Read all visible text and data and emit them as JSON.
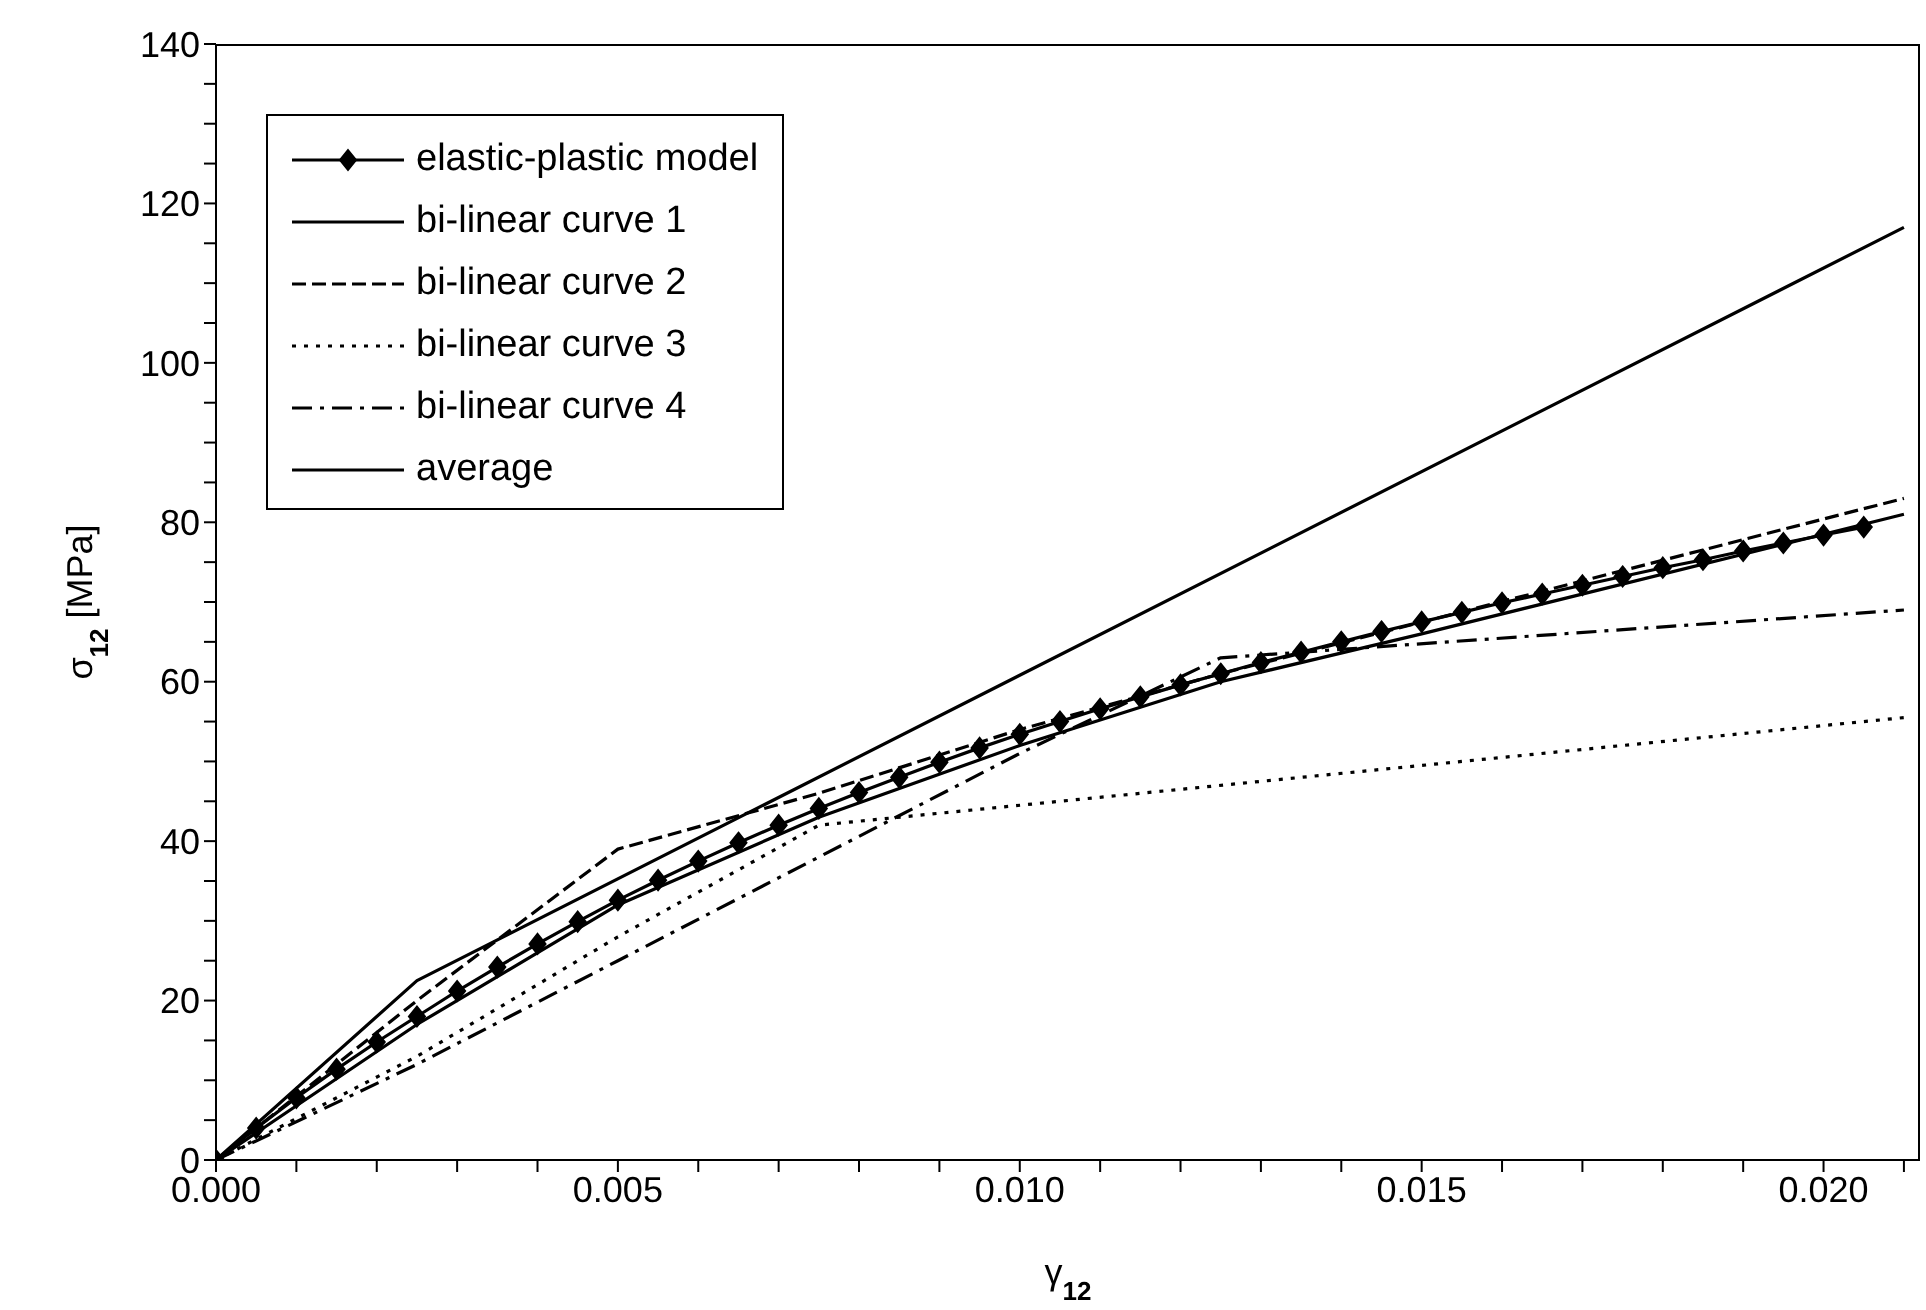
{
  "chart_data": {
    "type": "line",
    "xlabel": "γ$_{12}$",
    "ylabel": "σ$_{12}$ [MPa]",
    "xlim": [
      0,
      0.0212
    ],
    "xticks": [
      {
        "value": 0,
        "label": "0.000"
      },
      {
        "value": 0.001,
        "label": null
      },
      {
        "value": 0.002,
        "label": null
      },
      {
        "value": 0.003,
        "label": null
      },
      {
        "value": 0.004,
        "label": null
      },
      {
        "value": 0.005,
        "label": "0.005"
      },
      {
        "value": 0.006,
        "label": null
      },
      {
        "value": 0.007,
        "label": null
      },
      {
        "value": 0.008,
        "label": null
      },
      {
        "value": 0.009,
        "label": null
      },
      {
        "value": 0.01,
        "label": "0.010"
      },
      {
        "value": 0.011,
        "label": null
      },
      {
        "value": 0.012,
        "label": null
      },
      {
        "value": 0.013,
        "label": null
      },
      {
        "value": 0.014,
        "label": null
      },
      {
        "value": 0.015,
        "label": "0.015"
      },
      {
        "value": 0.016,
        "label": null
      },
      {
        "value": 0.017,
        "label": null
      },
      {
        "value": 0.018,
        "label": null
      },
      {
        "value": 0.019,
        "label": null
      },
      {
        "value": 0.02,
        "label": "0.020"
      },
      {
        "value": 0.021,
        "label": null
      }
    ],
    "ylim": [
      0,
      140
    ],
    "yticks": [
      0,
      {
        "value": 5,
        "label": null
      },
      {
        "value": 10,
        "label": null
      },
      {
        "value": 15,
        "label": null
      },
      20,
      {
        "value": 25,
        "label": null
      },
      {
        "value": 30,
        "label": null
      },
      {
        "value": 35,
        "label": null
      },
      40,
      {
        "value": 45,
        "label": null
      },
      {
        "value": 50,
        "label": null
      },
      {
        "value": 55,
        "label": null
      },
      60,
      {
        "value": 65,
        "label": null
      },
      {
        "value": 70,
        "label": null
      },
      {
        "value": 75,
        "label": null
      },
      80,
      {
        "value": 85,
        "label": null
      },
      {
        "value": 90,
        "label": null
      },
      {
        "value": 95,
        "label": null
      },
      100,
      {
        "value": 105,
        "label": null
      },
      {
        "value": 110,
        "label": null
      },
      {
        "value": 115,
        "label": null
      },
      120,
      {
        "value": 125,
        "label": null
      },
      {
        "value": 130,
        "label": null
      },
      {
        "value": 135,
        "label": null
      },
      140
    ],
    "grid": false,
    "legend": "top left",
    "series": [
      {
        "name": "elastic-plastic model",
        "color": "#000000",
        "marker": "diamond",
        "line_style": "solid",
        "x": [
          0,
          0.0005,
          0.001,
          0.0015,
          0.002,
          0.0025,
          0.003,
          0.0035,
          0.004,
          0.0045,
          0.005,
          0.0055,
          0.006,
          0.0065,
          0.007,
          0.0075,
          0.008,
          0.0085,
          0.009,
          0.0095,
          0.01,
          0.0105,
          0.011,
          0.0115,
          0.012,
          0.0125,
          0.013,
          0.0135,
          0.014,
          0.0145,
          0.015,
          0.0155,
          0.016,
          0.0165,
          0.017,
          0.0175,
          0.018,
          0.0185,
          0.019,
          0.0195,
          0.02,
          0.0205
        ],
        "values": [
          0,
          4,
          7.8,
          11.4,
          14.8,
          18,
          21.2,
          24.2,
          27.1,
          29.9,
          32.6,
          35.1,
          37.5,
          39.8,
          42,
          44.1,
          46.1,
          48,
          49.9,
          51.7,
          53.4,
          55,
          56.6,
          58.1,
          59.6,
          61,
          62.4,
          63.7,
          65,
          66.3,
          67.5,
          68.7,
          69.9,
          71,
          72.1,
          73.2,
          74.3,
          75.3,
          76.4,
          77.4,
          78.4,
          79.4
        ]
      },
      {
        "name": "bi-linear curve 1",
        "color": "#000000",
        "marker": "none",
        "line_style": "solid",
        "x": [
          0,
          0.0025,
          0.021
        ],
        "values": [
          0,
          22.5,
          117
        ]
      },
      {
        "name": "bi-linear curve 2",
        "color": "#000000",
        "marker": "none",
        "line_style": "dashed",
        "x": [
          0,
          0.0025,
          0.005,
          0.0075,
          0.01,
          0.0125,
          0.021
        ],
        "values": [
          0,
          20,
          39,
          46,
          54,
          61,
          83
        ]
      },
      {
        "name": "bi-linear curve 3",
        "color": "#000000",
        "marker": "none",
        "line_style": "dotted",
        "x": [
          0,
          0.0025,
          0.005,
          0.0075,
          0.021
        ],
        "values": [
          0,
          13,
          28,
          42,
          55.5
        ]
      },
      {
        "name": "bi-linear curve 4",
        "color": "#000000",
        "marker": "none",
        "line_style": "dashdot",
        "x": [
          0,
          0.0025,
          0.005,
          0.0075,
          0.01,
          0.0125,
          0.021
        ],
        "values": [
          0,
          12,
          25,
          38,
          51,
          63,
          69
        ]
      },
      {
        "name": "average",
        "color": "#000000",
        "marker": "none",
        "line_style": "solid",
        "x": [
          0,
          0.0025,
          0.005,
          0.0075,
          0.01,
          0.0125,
          0.015,
          0.021
        ],
        "values": [
          0,
          17,
          32,
          43,
          52,
          60,
          66,
          81
        ]
      }
    ]
  }
}
